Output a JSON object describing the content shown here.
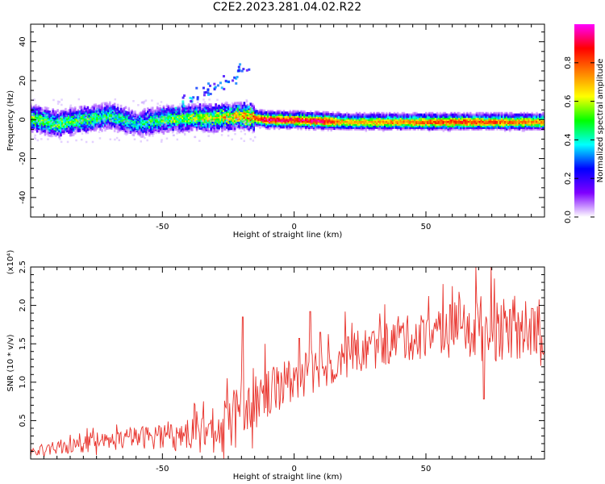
{
  "title": "C2E2.2023.281.04.02.R22",
  "chart_data": [
    {
      "type": "heatmap",
      "xlabel": "Height of straight line (km)",
      "ylabel": "Frequency (Hz)",
      "xlim": [
        -100,
        95
      ],
      "ylim": [
        -50,
        49
      ],
      "xticks": [
        -50,
        0,
        50
      ],
      "yticks": [
        -40,
        -20,
        0,
        20,
        40
      ],
      "colorbar": {
        "label": "Normalized spectral amplitude",
        "range": [
          0,
          1
        ],
        "ticks": [
          0.0,
          0.2,
          0.4,
          0.6,
          0.8
        ],
        "tick_labels": [
          "0.0",
          "0.2",
          "0.4",
          "0.6",
          "0.8"
        ],
        "colormap": [
          "#ffffff",
          "#7f00ff",
          "#0000ff",
          "#00ffff",
          "#00ff00",
          "#ffff00",
          "#ff8000",
          "#ff0000",
          "#ff00ff"
        ]
      },
      "ridge": {
        "center_frequency_hz": [
          [
            -100,
            1
          ],
          [
            -90,
            -2
          ],
          [
            -80,
            0
          ],
          [
            -70,
            2
          ],
          [
            -60,
            -2
          ],
          [
            -50,
            0
          ],
          [
            -40,
            1
          ],
          [
            -30,
            1
          ],
          [
            -20,
            2
          ],
          [
            -10,
            0
          ],
          [
            0,
            0
          ],
          [
            20,
            -1
          ],
          [
            40,
            -1
          ],
          [
            60,
            -1
          ],
          [
            80,
            -1
          ],
          [
            95,
            -1
          ]
        ],
        "peak_amplitude": [
          [
            -100,
            0.55
          ],
          [
            -90,
            0.5
          ],
          [
            -80,
            0.5
          ],
          [
            -70,
            0.45
          ],
          [
            -60,
            0.4
          ],
          [
            -50,
            0.5
          ],
          [
            -40,
            0.55
          ],
          [
            -30,
            0.65
          ],
          [
            -20,
            0.7
          ],
          [
            -10,
            0.95
          ],
          [
            0,
            0.9
          ],
          [
            10,
            0.95
          ],
          [
            20,
            0.7
          ],
          [
            40,
            0.75
          ],
          [
            60,
            0.85
          ],
          [
            80,
            0.8
          ],
          [
            95,
            0.75
          ]
        ]
      },
      "upper_branch": [
        [
          -50,
          4
        ],
        [
          -45,
          7
        ],
        [
          -40,
          11
        ],
        [
          -35,
          15
        ],
        [
          -30,
          18
        ],
        [
          -25,
          21
        ],
        [
          -20,
          27
        ]
      ]
    },
    {
      "type": "line",
      "xlabel": "Height of straight line (km)",
      "ylabel": "SNR (10 * v/v)",
      "y_multiplier": "(x10⁴)",
      "xlim": [
        -100,
        95
      ],
      "ylim": [
        0,
        2.5
      ],
      "xticks": [
        -50,
        0,
        50
      ],
      "yticks": [
        0.5,
        1.0,
        1.5,
        2.0,
        2.5
      ],
      "ytick_labels": [
        "0.5",
        "1.0",
        "1.5",
        "2.0",
        "2.5"
      ],
      "color": "#e8322b",
      "series": [
        {
          "trend_mean": [
            [
              -100,
              0.08
            ],
            [
              -90,
              0.14
            ],
            [
              -80,
              0.19
            ],
            [
              -70,
              0.23
            ],
            [
              -60,
              0.28
            ],
            [
              -50,
              0.3
            ],
            [
              -40,
              0.32
            ],
            [
              -30,
              0.37
            ],
            [
              -25,
              0.45
            ],
            [
              -20,
              0.6
            ],
            [
              -15,
              0.72
            ],
            [
              -10,
              0.88
            ],
            [
              -5,
              0.98
            ],
            [
              0,
              1.05
            ],
            [
              5,
              1.12
            ],
            [
              10,
              1.2
            ],
            [
              20,
              1.35
            ],
            [
              30,
              1.45
            ],
            [
              40,
              1.55
            ],
            [
              50,
              1.62
            ],
            [
              60,
              1.68
            ],
            [
              70,
              1.7
            ],
            [
              80,
              1.68
            ],
            [
              95,
              1.68
            ]
          ],
          "fluctuation_amplitude": [
            [
              -100,
              0.08
            ],
            [
              -60,
              0.14
            ],
            [
              -40,
              0.22
            ],
            [
              -25,
              0.35
            ],
            [
              -20,
              0.45
            ],
            [
              -10,
              0.35
            ],
            [
              0,
              0.3
            ],
            [
              20,
              0.3
            ],
            [
              50,
              0.3
            ],
            [
              70,
              0.45
            ],
            [
              95,
              0.35
            ]
          ],
          "notable_points": [
            [
              -19.5,
              1.85
            ],
            [
              -11,
              1.5
            ],
            [
              2,
              1.57
            ],
            [
              6,
              1.92
            ],
            [
              10,
              1.65
            ],
            [
              60,
              2.25
            ],
            [
              69,
              2.5
            ],
            [
              72,
              0.78
            ],
            [
              76,
              2.35
            ]
          ]
        }
      ]
    }
  ]
}
